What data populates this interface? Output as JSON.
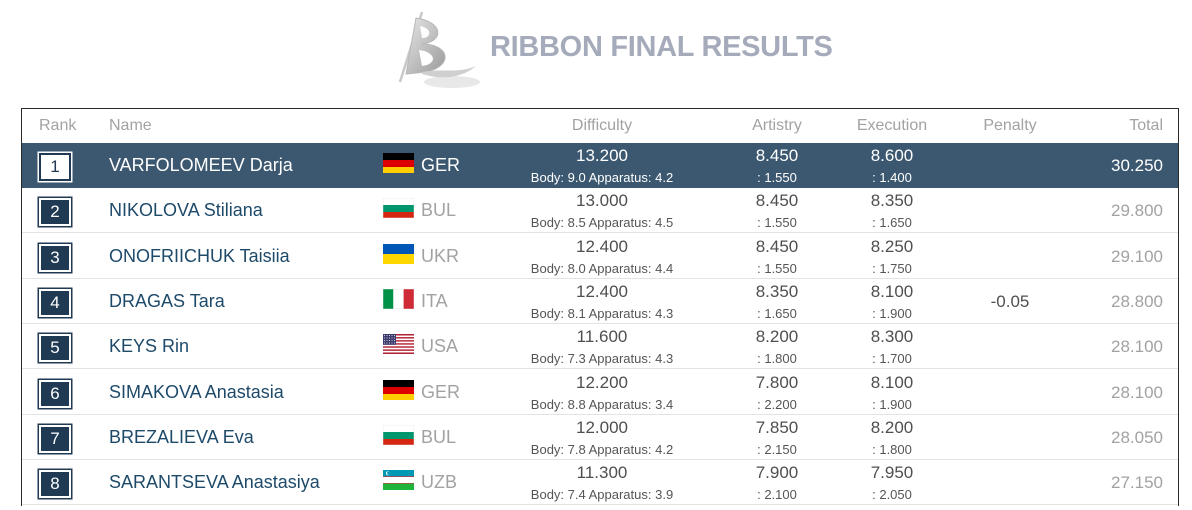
{
  "header": {
    "title": "RIBBON FINAL RESULTS",
    "logo_icon": "ribbon-b-logo-icon"
  },
  "columns": {
    "rank": "Rank",
    "name": "Name",
    "difficulty": "Difficulty",
    "artistry": "Artistry",
    "execution": "Execution",
    "penalty": "Penalty",
    "total": "Total"
  },
  "colors": {
    "highlight_row": "#3b5870",
    "rank_box": "#1f3a52",
    "name_text": "#1e4a6a",
    "title_text": "#a6abbb"
  },
  "rows": [
    {
      "rank": "1",
      "name": "VARFOLOMEEV Darja",
      "flag": "germany-flag-icon",
      "nation": "GER",
      "difficulty": "13.200",
      "difficulty_detail": "Body: 9.0 Apparatus: 4.2",
      "artistry": "8.450",
      "artistry_detail": ": 1.550",
      "execution": "8.600",
      "execution_detail": ": 1.400",
      "penalty": "",
      "total": "30.250",
      "highlighted": true
    },
    {
      "rank": "2",
      "name": "NIKOLOVA Stiliana",
      "flag": "bulgaria-flag-icon",
      "nation": "BUL",
      "difficulty": "13.000",
      "difficulty_detail": "Body: 8.5 Apparatus: 4.5",
      "artistry": "8.450",
      "artistry_detail": ": 1.550",
      "execution": "8.350",
      "execution_detail": ": 1.650",
      "penalty": "",
      "total": "29.800"
    },
    {
      "rank": "3",
      "name": "ONOFRIICHUK Taisiia",
      "flag": "ukraine-flag-icon",
      "nation": "UKR",
      "difficulty": "12.400",
      "difficulty_detail": "Body: 8.0 Apparatus: 4.4",
      "artistry": "8.450",
      "artistry_detail": ": 1.550",
      "execution": "8.250",
      "execution_detail": ": 1.750",
      "penalty": "",
      "total": "29.100"
    },
    {
      "rank": "4",
      "name": "DRAGAS Tara",
      "flag": "italy-flag-icon",
      "nation": "ITA",
      "difficulty": "12.400",
      "difficulty_detail": "Body: 8.1 Apparatus: 4.3",
      "artistry": "8.350",
      "artistry_detail": ": 1.650",
      "execution": "8.100",
      "execution_detail": ": 1.900",
      "penalty": "-0.05",
      "total": "28.800"
    },
    {
      "rank": "5",
      "name": "KEYS Rin",
      "flag": "usa-flag-icon",
      "nation": "USA",
      "difficulty": "11.600",
      "difficulty_detail": "Body: 7.3 Apparatus: 4.3",
      "artistry": "8.200",
      "artistry_detail": ": 1.800",
      "execution": "8.300",
      "execution_detail": ": 1.700",
      "penalty": "",
      "total": "28.100"
    },
    {
      "rank": "6",
      "name": "SIMAKOVA Anastasia",
      "flag": "germany-flag-icon",
      "nation": "GER",
      "difficulty": "12.200",
      "difficulty_detail": "Body: 8.8 Apparatus: 3.4",
      "artistry": "7.800",
      "artistry_detail": ": 2.200",
      "execution": "8.100",
      "execution_detail": ": 1.900",
      "penalty": "",
      "total": "28.100"
    },
    {
      "rank": "7",
      "name": "BREZALIEVA Eva",
      "flag": "bulgaria-flag-icon",
      "nation": "BUL",
      "difficulty": "12.000",
      "difficulty_detail": "Body: 7.8 Apparatus: 4.2",
      "artistry": "7.850",
      "artistry_detail": ": 2.150",
      "execution": "8.200",
      "execution_detail": ": 1.800",
      "penalty": "",
      "total": "28.050"
    },
    {
      "rank": "8",
      "name": "SARANTSEVA Anastasiya",
      "flag": "uzbekistan-flag-icon",
      "nation": "UZB",
      "difficulty": "11.300",
      "difficulty_detail": "Body: 7.4 Apparatus: 3.9",
      "artistry": "7.900",
      "artistry_detail": ": 2.100",
      "execution": "7.950",
      "execution_detail": ": 2.050",
      "penalty": "",
      "total": "27.150"
    }
  ]
}
